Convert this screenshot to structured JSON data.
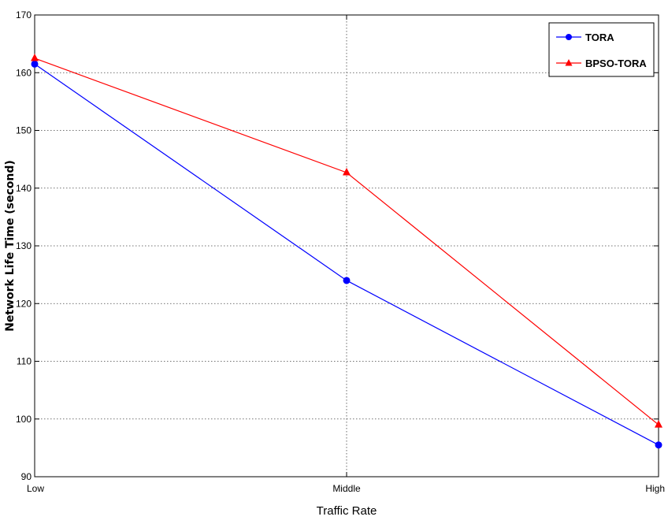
{
  "chart_data": {
    "type": "line",
    "categories": [
      "Low",
      "Middle",
      "High"
    ],
    "series": [
      {
        "name": "TORA",
        "values": [
          161.5,
          124,
          95.5
        ],
        "color": "#0000ff",
        "marker": "circle"
      },
      {
        "name": "BPSO-TORA",
        "values": [
          162.5,
          142.7,
          99
        ],
        "color": "#ff0000",
        "marker": "triangle"
      }
    ],
    "title": "",
    "xlabel": "Traffic Rate",
    "ylabel": "Network Life Time (second)",
    "ylim": [
      90,
      170
    ],
    "yticks": [
      "90",
      "100",
      "110",
      "120",
      "130",
      "140",
      "150",
      "160",
      "170"
    ],
    "grid": "horizontal-dotted",
    "legend_position": "top-right"
  }
}
